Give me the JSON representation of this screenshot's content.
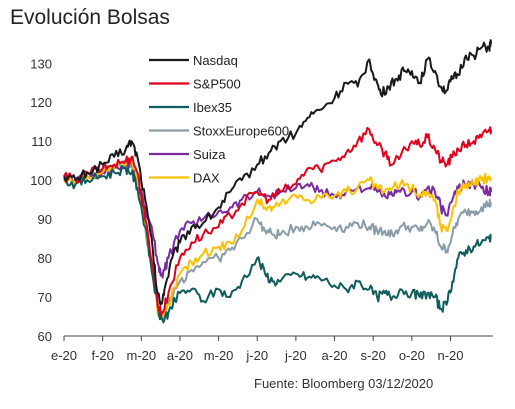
{
  "page": {
    "title": "Evolución Bolsas",
    "source": "Fuente: Bloomberg 03/12/2020"
  },
  "chart_data": {
    "type": "line",
    "title": "Evolución Bolsas",
    "xlabel": "",
    "ylabel": "",
    "ylim": [
      60,
      137
    ],
    "yticks": [
      60,
      70,
      80,
      90,
      100,
      110,
      120,
      130
    ],
    "x_tick_labels": [
      "e-20",
      "f-20",
      "m-20",
      "a-20",
      "m-20",
      "j-20",
      "j-20",
      "a-20",
      "s-20",
      "o-20",
      "n-20"
    ],
    "x_tick_pos": [
      0,
      1,
      2,
      3,
      4,
      5,
      6,
      7,
      8,
      9,
      10
    ],
    "xlim": [
      0,
      11.1
    ],
    "grid": false,
    "legend_position": "top-center",
    "series": [
      {
        "name": "Nasdaq",
        "color": "#1a1a1a",
        "points": [
          [
            0,
            101
          ],
          [
            0.3,
            100
          ],
          [
            0.6,
            102
          ],
          [
            1.0,
            104
          ],
          [
            1.3,
            106
          ],
          [
            1.6,
            108
          ],
          [
            1.75,
            110
          ],
          [
            1.9,
            106
          ],
          [
            2.1,
            95
          ],
          [
            2.3,
            82
          ],
          [
            2.4,
            72
          ],
          [
            2.5,
            68
          ],
          [
            2.6,
            72
          ],
          [
            2.8,
            80
          ],
          [
            3.0,
            84
          ],
          [
            3.3,
            88
          ],
          [
            3.6,
            89
          ],
          [
            4.0,
            93
          ],
          [
            4.3,
            97
          ],
          [
            4.6,
            100
          ],
          [
            5.0,
            104
          ],
          [
            5.3,
            107
          ],
          [
            5.6,
            110
          ],
          [
            6.0,
            112
          ],
          [
            6.3,
            116
          ],
          [
            6.6,
            118
          ],
          [
            7.0,
            121
          ],
          [
            7.3,
            125
          ],
          [
            7.6,
            124
          ],
          [
            7.9,
            131
          ],
          [
            8.05,
            126
          ],
          [
            8.2,
            122
          ],
          [
            8.4,
            124
          ],
          [
            8.6,
            126
          ],
          [
            8.8,
            128
          ],
          [
            9.0,
            128
          ],
          [
            9.2,
            125
          ],
          [
            9.4,
            131
          ],
          [
            9.6,
            128
          ],
          [
            9.75,
            124
          ],
          [
            9.9,
            123
          ],
          [
            10.05,
            126
          ],
          [
            10.2,
            127
          ],
          [
            10.4,
            132
          ],
          [
            10.6,
            132
          ],
          [
            10.8,
            134
          ],
          [
            11.0,
            134
          ],
          [
            11.05,
            135
          ]
        ]
      },
      {
        "name": "S&P500",
        "color": "#e0001b",
        "points": [
          [
            0,
            101
          ],
          [
            0.3,
            100
          ],
          [
            0.6,
            102
          ],
          [
            1.0,
            103
          ],
          [
            1.3,
            104
          ],
          [
            1.6,
            105
          ],
          [
            1.75,
            106
          ],
          [
            1.9,
            102
          ],
          [
            2.1,
            90
          ],
          [
            2.3,
            78
          ],
          [
            2.45,
            67
          ],
          [
            2.55,
            66
          ],
          [
            2.7,
            71
          ],
          [
            3.0,
            80
          ],
          [
            3.3,
            84
          ],
          [
            3.6,
            86
          ],
          [
            4.0,
            88
          ],
          [
            4.3,
            91
          ],
          [
            4.6,
            94
          ],
          [
            5.0,
            97
          ],
          [
            5.3,
            95
          ],
          [
            5.6,
            97
          ],
          [
            6.0,
            99
          ],
          [
            6.3,
            103
          ],
          [
            6.6,
            103
          ],
          [
            7.0,
            105
          ],
          [
            7.3,
            107
          ],
          [
            7.6,
            110
          ],
          [
            7.9,
            113
          ],
          [
            8.1,
            109
          ],
          [
            8.3,
            107
          ],
          [
            8.5,
            104
          ],
          [
            8.7,
            106
          ],
          [
            9.0,
            110
          ],
          [
            9.2,
            109
          ],
          [
            9.4,
            111
          ],
          [
            9.6,
            108
          ],
          [
            9.75,
            105
          ],
          [
            9.9,
            104
          ],
          [
            10.05,
            106
          ],
          [
            10.2,
            108
          ],
          [
            10.4,
            109
          ],
          [
            10.6,
            110
          ],
          [
            10.8,
            111
          ],
          [
            11.0,
            113
          ],
          [
            11.05,
            113
          ]
        ]
      },
      {
        "name": "Ibex35",
        "color": "#0f5c5c",
        "points": [
          [
            0,
            100
          ],
          [
            0.3,
            99
          ],
          [
            0.6,
            100
          ],
          [
            1.0,
            101
          ],
          [
            1.3,
            102
          ],
          [
            1.6,
            103
          ],
          [
            1.75,
            102
          ],
          [
            1.9,
            98
          ],
          [
            2.1,
            88
          ],
          [
            2.3,
            75
          ],
          [
            2.45,
            66
          ],
          [
            2.55,
            64
          ],
          [
            2.7,
            66
          ],
          [
            3.0,
            71
          ],
          [
            3.3,
            72
          ],
          [
            3.6,
            69
          ],
          [
            4.0,
            72
          ],
          [
            4.3,
            70
          ],
          [
            4.6,
            74
          ],
          [
            5.0,
            80
          ],
          [
            5.2,
            76
          ],
          [
            5.4,
            74
          ],
          [
            5.6,
            74
          ],
          [
            6.0,
            76
          ],
          [
            6.3,
            75
          ],
          [
            6.6,
            75
          ],
          [
            7.0,
            73
          ],
          [
            7.3,
            72
          ],
          [
            7.6,
            74
          ],
          [
            7.9,
            72
          ],
          [
            8.1,
            70
          ],
          [
            8.3,
            71
          ],
          [
            8.5,
            70
          ],
          [
            8.7,
            72
          ],
          [
            9.0,
            71
          ],
          [
            9.2,
            70
          ],
          [
            9.4,
            71
          ],
          [
            9.6,
            70
          ],
          [
            9.75,
            67
          ],
          [
            9.9,
            68
          ],
          [
            10.05,
            74
          ],
          [
            10.2,
            80
          ],
          [
            10.4,
            82
          ],
          [
            10.6,
            83
          ],
          [
            10.8,
            84
          ],
          [
            11.0,
            85
          ],
          [
            11.05,
            86
          ]
        ]
      },
      {
        "name": "StoxxEurope600",
        "color": "#8a9ca8",
        "points": [
          [
            0,
            101
          ],
          [
            0.3,
            100
          ],
          [
            0.6,
            101
          ],
          [
            1.0,
            102
          ],
          [
            1.3,
            103
          ],
          [
            1.6,
            104
          ],
          [
            1.75,
            104
          ],
          [
            1.9,
            100
          ],
          [
            2.1,
            88
          ],
          [
            2.3,
            76
          ],
          [
            2.45,
            67
          ],
          [
            2.55,
            65
          ],
          [
            2.7,
            68
          ],
          [
            3.0,
            74
          ],
          [
            3.3,
            77
          ],
          [
            3.6,
            79
          ],
          [
            4.0,
            80
          ],
          [
            4.3,
            82
          ],
          [
            4.6,
            85
          ],
          [
            5.0,
            90
          ],
          [
            5.2,
            87
          ],
          [
            5.4,
            86
          ],
          [
            5.6,
            86
          ],
          [
            6.0,
            88
          ],
          [
            6.3,
            88
          ],
          [
            6.6,
            89
          ],
          [
            7.0,
            88
          ],
          [
            7.3,
            88
          ],
          [
            7.6,
            89
          ],
          [
            7.9,
            88
          ],
          [
            8.1,
            87
          ],
          [
            8.3,
            87
          ],
          [
            8.5,
            86
          ],
          [
            8.7,
            88
          ],
          [
            9.0,
            88
          ],
          [
            9.2,
            87
          ],
          [
            9.4,
            89
          ],
          [
            9.6,
            87
          ],
          [
            9.75,
            83
          ],
          [
            9.9,
            82
          ],
          [
            10.05,
            86
          ],
          [
            10.2,
            90
          ],
          [
            10.4,
            92
          ],
          [
            10.6,
            92
          ],
          [
            10.8,
            93
          ],
          [
            11.0,
            94
          ],
          [
            11.05,
            94
          ]
        ]
      },
      {
        "name": "Suiza",
        "color": "#7b2aa0",
        "points": [
          [
            0,
            101
          ],
          [
            0.3,
            100
          ],
          [
            0.6,
            101
          ],
          [
            1.0,
            102
          ],
          [
            1.3,
            103
          ],
          [
            1.6,
            104
          ],
          [
            1.75,
            105
          ],
          [
            1.9,
            100
          ],
          [
            2.1,
            93
          ],
          [
            2.3,
            86
          ],
          [
            2.45,
            78
          ],
          [
            2.55,
            75
          ],
          [
            2.7,
            80
          ],
          [
            3.0,
            87
          ],
          [
            3.3,
            89
          ],
          [
            3.6,
            90
          ],
          [
            4.0,
            92
          ],
          [
            4.3,
            93
          ],
          [
            4.6,
            95
          ],
          [
            5.0,
            97
          ],
          [
            5.3,
            96
          ],
          [
            5.6,
            97
          ],
          [
            6.0,
            98
          ],
          [
            6.3,
            99
          ],
          [
            6.6,
            97
          ],
          [
            7.0,
            96
          ],
          [
            7.3,
            97
          ],
          [
            7.6,
            98
          ],
          [
            7.9,
            98
          ],
          [
            8.1,
            97
          ],
          [
            8.3,
            96
          ],
          [
            8.5,
            96
          ],
          [
            8.7,
            97
          ],
          [
            9.0,
            97
          ],
          [
            9.2,
            96
          ],
          [
            9.4,
            98
          ],
          [
            9.6,
            97
          ],
          [
            9.75,
            93
          ],
          [
            9.9,
            91
          ],
          [
            10.05,
            95
          ],
          [
            10.2,
            98
          ],
          [
            10.4,
            99
          ],
          [
            10.6,
            99
          ],
          [
            10.8,
            98
          ],
          [
            11.0,
            97
          ],
          [
            11.05,
            97
          ]
        ]
      },
      {
        "name": "DAX",
        "color": "#ffc000",
        "points": [
          [
            0,
            100
          ],
          [
            0.3,
            100
          ],
          [
            0.6,
            101
          ],
          [
            1.0,
            102
          ],
          [
            1.3,
            103
          ],
          [
            1.6,
            104
          ],
          [
            1.75,
            105
          ],
          [
            1.9,
            100
          ],
          [
            2.1,
            89
          ],
          [
            2.3,
            76
          ],
          [
            2.45,
            65
          ],
          [
            2.55,
            64
          ],
          [
            2.7,
            68
          ],
          [
            3.0,
            76
          ],
          [
            3.3,
            79
          ],
          [
            3.6,
            81
          ],
          [
            4.0,
            83
          ],
          [
            4.3,
            84
          ],
          [
            4.6,
            87
          ],
          [
            5.0,
            95
          ],
          [
            5.2,
            93
          ],
          [
            5.4,
            93
          ],
          [
            5.6,
            94
          ],
          [
            6.0,
            96
          ],
          [
            6.3,
            95
          ],
          [
            6.6,
            96
          ],
          [
            7.0,
            96
          ],
          [
            7.3,
            97
          ],
          [
            7.6,
            98
          ],
          [
            7.9,
            100
          ],
          [
            8.1,
            98
          ],
          [
            8.3,
            97
          ],
          [
            8.5,
            98
          ],
          [
            8.7,
            99
          ],
          [
            9.0,
            98
          ],
          [
            9.2,
            96
          ],
          [
            9.4,
            97
          ],
          [
            9.6,
            95
          ],
          [
            9.75,
            88
          ],
          [
            9.9,
            87
          ],
          [
            10.05,
            92
          ],
          [
            10.2,
            97
          ],
          [
            10.4,
            99
          ],
          [
            10.6,
            99
          ],
          [
            10.8,
            100
          ],
          [
            11.0,
            101
          ],
          [
            11.05,
            100
          ]
        ]
      }
    ]
  }
}
